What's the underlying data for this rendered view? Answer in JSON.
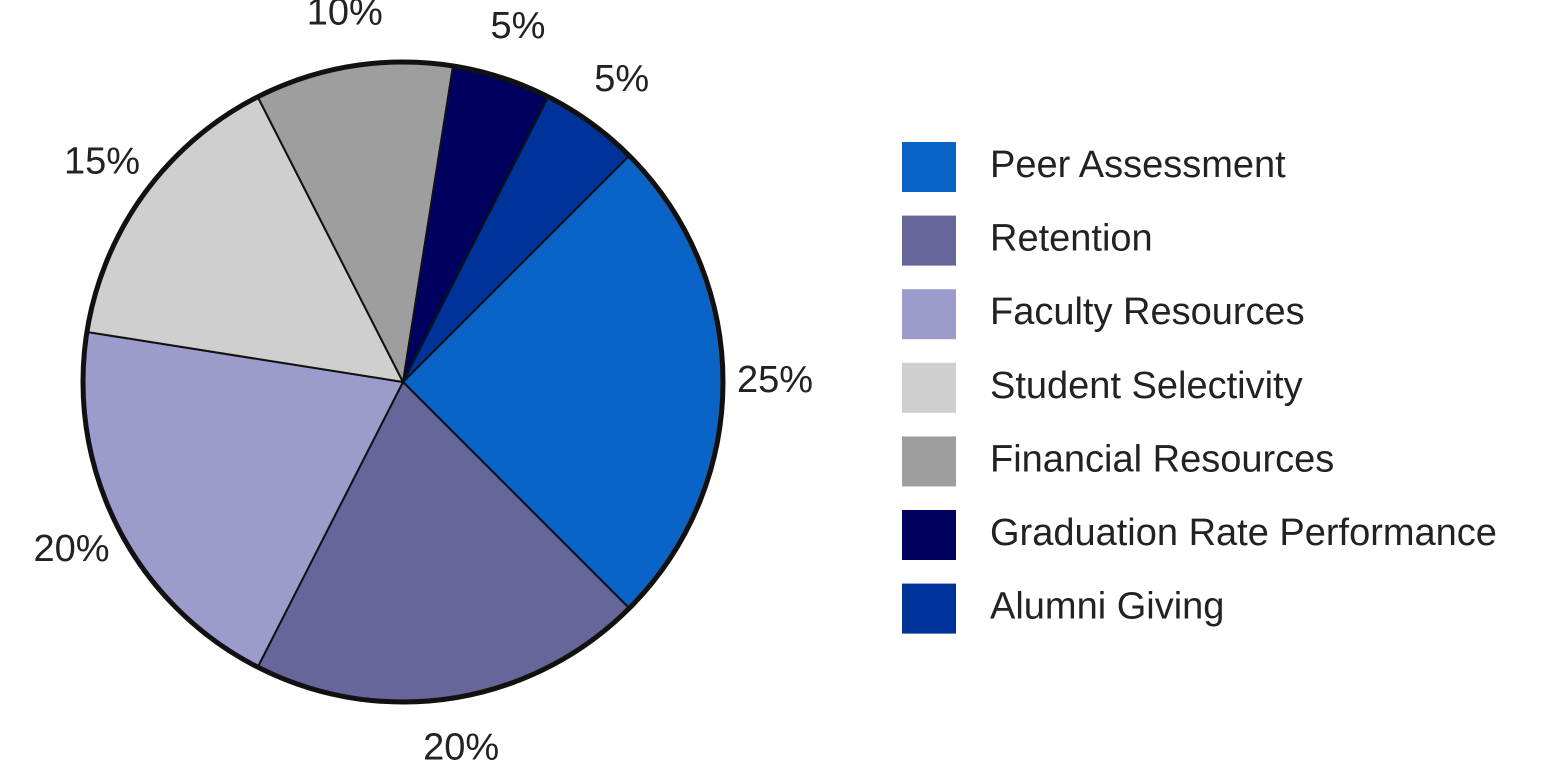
{
  "chart_data": {
    "type": "pie",
    "categories": [
      "Peer Assessment",
      "Retention",
      "Faculty Resources",
      "Student Selectivity",
      "Financial Resources",
      "Graduation Rate Performance",
      "Alumni Giving"
    ],
    "values": [
      25,
      20,
      20,
      15,
      10,
      5,
      5
    ],
    "value_labels": [
      "25%",
      "20%",
      "20%",
      "15%",
      "10%",
      "5%",
      "5%"
    ],
    "colors": [
      "#0a64c8",
      "#66669a",
      "#9c9ccc",
      "#cfcfcf",
      "#9e9e9e",
      "#00005e",
      "#003399"
    ],
    "legend": "right"
  }
}
